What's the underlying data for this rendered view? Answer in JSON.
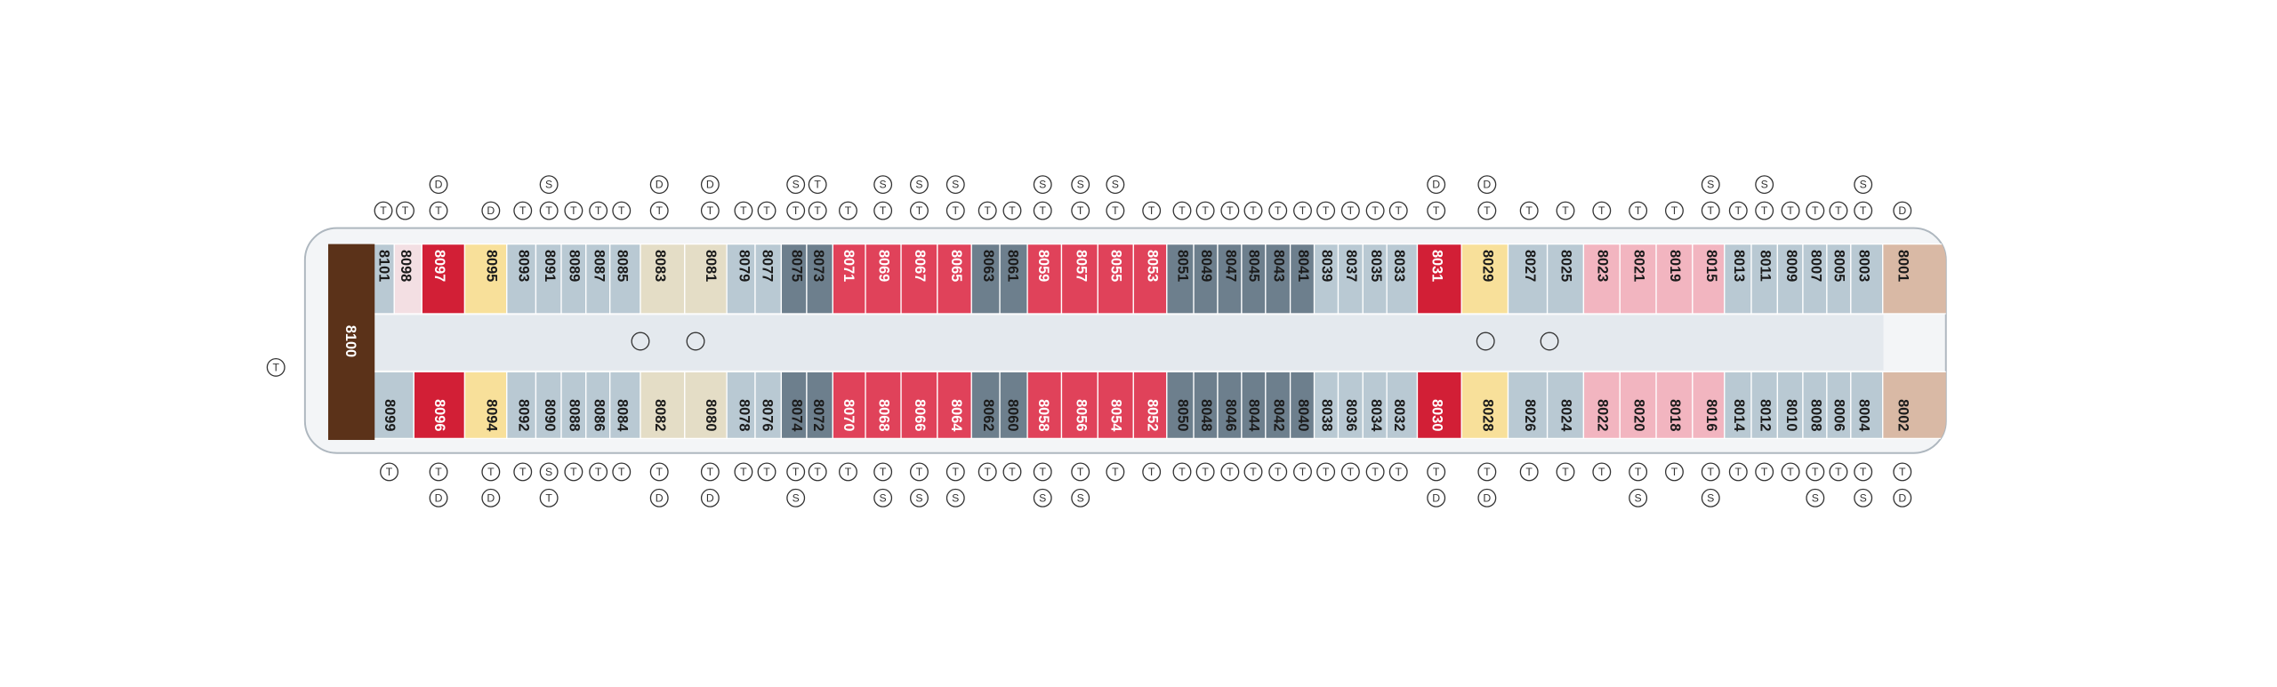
{
  "deck": {
    "aft": {
      "number": "8100",
      "color": "#5b3219",
      "icons": [
        "T"
      ]
    },
    "top": [
      {
        "number": "8101",
        "color": "#b9c9d3",
        "icons": [
          "T"
        ]
      },
      {
        "number": "8098",
        "color": "#f3dfe3",
        "icons": [
          "T"
        ]
      },
      {
        "number": "8097",
        "color": "#d21f36",
        "icons": [
          "T",
          "D"
        ]
      },
      {
        "number": "8095",
        "color": "#f8e09a",
        "icons": [
          "D"
        ]
      },
      {
        "number": "8093",
        "color": "#b9c9d3",
        "icons": [
          "T"
        ]
      },
      {
        "number": "8091",
        "color": "#b9c9d3",
        "icons": [
          "T",
          "S"
        ]
      },
      {
        "number": "8089",
        "color": "#b9c9d3",
        "icons": [
          "T"
        ]
      },
      {
        "number": "8087",
        "color": "#b9c9d3",
        "icons": [
          "T"
        ]
      },
      {
        "number": "8085",
        "color": "#b9c9d3",
        "icons": [
          "T"
        ]
      },
      {
        "number": "8083",
        "color": "#e4ddc6",
        "icons": [
          "T",
          "D"
        ]
      },
      {
        "number": "8081",
        "color": "#e4ddc6",
        "icons": [
          "T",
          "D"
        ]
      },
      {
        "number": "8079",
        "color": "#b9c9d3",
        "icons": [
          "T"
        ]
      },
      {
        "number": "8077",
        "color": "#b9c9d3",
        "icons": [
          "T"
        ]
      },
      {
        "number": "8075",
        "color": "#6d7f8d",
        "icons": [
          "T",
          "S"
        ]
      },
      {
        "number": "8073",
        "color": "#6d7f8d",
        "icons": [
          "T",
          "T"
        ]
      },
      {
        "number": "8071",
        "color": "#e0425a",
        "icons": [
          "T"
        ]
      },
      {
        "number": "8069",
        "color": "#e0425a",
        "icons": [
          "T",
          "S"
        ]
      },
      {
        "number": "8067",
        "color": "#e0425a",
        "icons": [
          "T",
          "S"
        ]
      },
      {
        "number": "8065",
        "color": "#e0425a",
        "icons": [
          "T",
          "S"
        ]
      },
      {
        "number": "8063",
        "color": "#6d7f8d",
        "icons": [
          "T"
        ]
      },
      {
        "number": "8061",
        "color": "#6d7f8d",
        "icons": [
          "T"
        ]
      },
      {
        "number": "8059",
        "color": "#e0425a",
        "icons": [
          "T",
          "S"
        ]
      },
      {
        "number": "8057",
        "color": "#e0425a",
        "icons": [
          "T",
          "S"
        ]
      },
      {
        "number": "8055",
        "color": "#e0425a",
        "icons": [
          "T",
          "S"
        ]
      },
      {
        "number": "8053",
        "color": "#e0425a",
        "icons": [
          "T"
        ]
      },
      {
        "number": "8051",
        "color": "#6d7f8d",
        "icons": [
          "T"
        ]
      },
      {
        "number": "8049",
        "color": "#6d7f8d",
        "icons": [
          "T"
        ]
      },
      {
        "number": "8047",
        "color": "#6d7f8d",
        "icons": [
          "T"
        ]
      },
      {
        "number": "8045",
        "color": "#6d7f8d",
        "icons": [
          "T"
        ]
      },
      {
        "number": "8043",
        "color": "#6d7f8d",
        "icons": [
          "T"
        ]
      },
      {
        "number": "8041",
        "color": "#6d7f8d",
        "icons": [
          "T"
        ]
      },
      {
        "number": "8039",
        "color": "#b9c9d3",
        "icons": [
          "T"
        ]
      },
      {
        "number": "8037",
        "color": "#b9c9d3",
        "icons": [
          "T"
        ]
      },
      {
        "number": "8035",
        "color": "#b9c9d3",
        "icons": [
          "T"
        ]
      },
      {
        "number": "8033",
        "color": "#b9c9d3",
        "icons": [
          "T"
        ]
      },
      {
        "number": "8031",
        "color": "#d21f36",
        "icons": [
          "T",
          "D"
        ]
      },
      {
        "number": "8029",
        "color": "#f8e09a",
        "icons": [
          "T",
          "D"
        ]
      },
      {
        "number": "8027",
        "color": "#b9c9d3",
        "icons": [
          "T"
        ]
      },
      {
        "number": "8025",
        "color": "#b9c9d3",
        "icons": [
          "T"
        ]
      },
      {
        "number": "8023",
        "color": "#f2b5c0",
        "icons": [
          "T"
        ]
      },
      {
        "number": "8021",
        "color": "#f2b5c0",
        "icons": [
          "T"
        ]
      },
      {
        "number": "8019",
        "color": "#f2b5c0",
        "icons": [
          "T"
        ]
      },
      {
        "number": "8015",
        "color": "#f2b5c0",
        "icons": [
          "T",
          "S"
        ]
      },
      {
        "number": "8013",
        "color": "#b9c9d3",
        "icons": [
          "T"
        ]
      },
      {
        "number": "8011",
        "color": "#b9c9d3",
        "icons": [
          "T",
          "S"
        ]
      },
      {
        "number": "8009",
        "color": "#b9c9d3",
        "icons": [
          "T"
        ]
      },
      {
        "number": "8007",
        "color": "#b9c9d3",
        "icons": [
          "T"
        ]
      },
      {
        "number": "8005",
        "color": "#b9c9d3",
        "icons": [
          "T"
        ]
      },
      {
        "number": "8003",
        "color": "#b9c9d3",
        "icons": [
          "T",
          "S"
        ]
      },
      {
        "number": "8001",
        "color": "#d9b9a5",
        "icons": [
          "D"
        ]
      }
    ],
    "bottom": [
      {
        "number": "8099",
        "color": "#b9c9d3",
        "icons": [
          "T"
        ]
      },
      {
        "number": "8096",
        "color": "#d21f36",
        "icons": [
          "T",
          "D"
        ]
      },
      {
        "number": "8094",
        "color": "#f8e09a",
        "icons": [
          "T",
          "D"
        ]
      },
      {
        "number": "8092",
        "color": "#b9c9d3",
        "icons": [
          "T"
        ]
      },
      {
        "number": "8090",
        "color": "#b9c9d3",
        "icons": [
          "S",
          "T"
        ]
      },
      {
        "number": "8088",
        "color": "#b9c9d3",
        "icons": [
          "T"
        ]
      },
      {
        "number": "8086",
        "color": "#b9c9d3",
        "icons": [
          "T"
        ]
      },
      {
        "number": "8084",
        "color": "#b9c9d3",
        "icons": [
          "T"
        ]
      },
      {
        "number": "8082",
        "color": "#e4ddc6",
        "icons": [
          "T",
          "D"
        ]
      },
      {
        "number": "8080",
        "color": "#e4ddc6",
        "icons": [
          "T",
          "D"
        ]
      },
      {
        "number": "8078",
        "color": "#b9c9d3",
        "icons": [
          "T"
        ]
      },
      {
        "number": "8076",
        "color": "#b9c9d3",
        "icons": [
          "T"
        ]
      },
      {
        "number": "8074",
        "color": "#6d7f8d",
        "icons": [
          "T",
          "S"
        ]
      },
      {
        "number": "8072",
        "color": "#6d7f8d",
        "icons": [
          "T"
        ]
      },
      {
        "number": "8070",
        "color": "#e0425a",
        "icons": [
          "T"
        ]
      },
      {
        "number": "8068",
        "color": "#e0425a",
        "icons": [
          "T",
          "S"
        ]
      },
      {
        "number": "8066",
        "color": "#e0425a",
        "icons": [
          "T",
          "S"
        ]
      },
      {
        "number": "8064",
        "color": "#e0425a",
        "icons": [
          "T",
          "S"
        ]
      },
      {
        "number": "8062",
        "color": "#6d7f8d",
        "icons": [
          "T"
        ]
      },
      {
        "number": "8060",
        "color": "#6d7f8d",
        "icons": [
          "T"
        ]
      },
      {
        "number": "8058",
        "color": "#e0425a",
        "icons": [
          "T",
          "S"
        ]
      },
      {
        "number": "8056",
        "color": "#e0425a",
        "icons": [
          "T",
          "S"
        ]
      },
      {
        "number": "8054",
        "color": "#e0425a",
        "icons": [
          "T"
        ]
      },
      {
        "number": "8052",
        "color": "#e0425a",
        "icons": [
          "T"
        ]
      },
      {
        "number": "8050",
        "color": "#6d7f8d",
        "icons": [
          "T"
        ]
      },
      {
        "number": "8048",
        "color": "#6d7f8d",
        "icons": [
          "T"
        ]
      },
      {
        "number": "8046",
        "color": "#6d7f8d",
        "icons": [
          "T"
        ]
      },
      {
        "number": "8044",
        "color": "#6d7f8d",
        "icons": [
          "T"
        ]
      },
      {
        "number": "8042",
        "color": "#6d7f8d",
        "icons": [
          "T"
        ]
      },
      {
        "number": "8040",
        "color": "#6d7f8d",
        "icons": [
          "T"
        ]
      },
      {
        "number": "8038",
        "color": "#b9c9d3",
        "icons": [
          "T"
        ]
      },
      {
        "number": "8036",
        "color": "#b9c9d3",
        "icons": [
          "T"
        ]
      },
      {
        "number": "8034",
        "color": "#b9c9d3",
        "icons": [
          "T"
        ]
      },
      {
        "number": "8032",
        "color": "#b9c9d3",
        "icons": [
          "T"
        ]
      },
      {
        "number": "8030",
        "color": "#d21f36",
        "icons": [
          "T",
          "D"
        ]
      },
      {
        "number": "8028",
        "color": "#f8e09a",
        "icons": [
          "T",
          "D"
        ]
      },
      {
        "number": "8026",
        "color": "#b9c9d3",
        "icons": [
          "T"
        ]
      },
      {
        "number": "8024",
        "color": "#b9c9d3",
        "icons": [
          "T"
        ]
      },
      {
        "number": "8022",
        "color": "#f2b5c0",
        "icons": [
          "T"
        ]
      },
      {
        "number": "8020",
        "color": "#f2b5c0",
        "icons": [
          "T",
          "S"
        ]
      },
      {
        "number": "8018",
        "color": "#f2b5c0",
        "icons": [
          "T"
        ]
      },
      {
        "number": "8016",
        "color": "#f2b5c0",
        "icons": [
          "T",
          "S"
        ]
      },
      {
        "number": "8014",
        "color": "#b9c9d3",
        "icons": [
          "T"
        ]
      },
      {
        "number": "8012",
        "color": "#b9c9d3",
        "icons": [
          "T"
        ]
      },
      {
        "number": "8010",
        "color": "#b9c9d3",
        "icons": [
          "T"
        ]
      },
      {
        "number": "8008",
        "color": "#b9c9d3",
        "icons": [
          "T",
          "S"
        ]
      },
      {
        "number": "8006",
        "color": "#b9c9d3",
        "icons": [
          "T"
        ]
      },
      {
        "number": "8004",
        "color": "#b9c9d3",
        "icons": [
          "T",
          "S"
        ]
      },
      {
        "number": "8002",
        "color": "#d9b9a5",
        "icons": [
          "T",
          "D"
        ]
      }
    ]
  }
}
